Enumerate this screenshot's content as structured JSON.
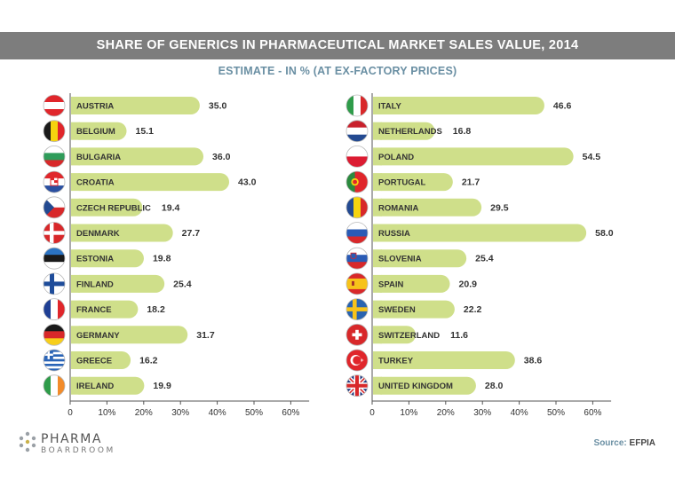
{
  "chart_data": {
    "type": "bar",
    "orientation": "horizontal",
    "title": "SHARE OF GENERICS IN PHARMACEUTICAL MARKET SALES VALUE, 2014",
    "subtitle": "ESTIMATE - IN % (AT EX-FACTORY PRICES)",
    "xlim": [
      0,
      65
    ],
    "xticks": [
      "0",
      "10%",
      "20%",
      "30%",
      "40%",
      "50%",
      "60%"
    ],
    "grid": false,
    "bar_color": "#cfdf8a",
    "panels": [
      {
        "categories": [
          "AUSTRIA",
          "BELGIUM",
          "BULGARIA",
          "CROATIA",
          "CZECH REPUBLIC",
          "DENMARK",
          "ESTONIA",
          "FINLAND",
          "FRANCE",
          "GERMANY",
          "GREECE",
          "IRELAND"
        ],
        "values": [
          35.0,
          15.1,
          36.0,
          43.0,
          19.4,
          27.7,
          19.8,
          25.4,
          18.2,
          31.7,
          16.2,
          19.9
        ],
        "value_labels": [
          "35.0",
          "15.1",
          "36.0",
          "43.0",
          "19.4",
          "27.7",
          "19.8",
          "25.4",
          "18.2",
          "31.7",
          "16.2",
          "19.9"
        ],
        "flags": [
          "austria-flag-icon",
          "belgium-flag-icon",
          "bulgaria-flag-icon",
          "croatia-flag-icon",
          "czech-republic-flag-icon",
          "denmark-flag-icon",
          "estonia-flag-icon",
          "finland-flag-icon",
          "france-flag-icon",
          "germany-flag-icon",
          "greece-flag-icon",
          "ireland-flag-icon"
        ]
      },
      {
        "categories": [
          "ITALY",
          "NETHERLANDS",
          "POLAND",
          "PORTUGAL",
          "ROMANIA",
          "RUSSIA",
          "SLOVENIA",
          "SPAIN",
          "SWEDEN",
          "SWITZERLAND",
          "TURKEY",
          "UNITED KINGDOM"
        ],
        "values": [
          46.6,
          16.8,
          54.5,
          21.7,
          29.5,
          58.0,
          25.4,
          20.9,
          22.2,
          11.6,
          38.6,
          28.0
        ],
        "value_labels": [
          "46.6",
          "16.8",
          "54.5",
          "21.7",
          "29.5",
          "58.0",
          "25.4",
          "20.9",
          "22.2",
          "11.6",
          "38.6",
          "28.0"
        ],
        "flags": [
          "italy-flag-icon",
          "netherlands-flag-icon",
          "poland-flag-icon",
          "portugal-flag-icon",
          "romania-flag-icon",
          "russia-flag-icon",
          "slovenia-flag-icon",
          "spain-flag-icon",
          "sweden-flag-icon",
          "switzerland-flag-icon",
          "turkey-flag-icon",
          "united-kingdom-flag-icon"
        ]
      }
    ]
  },
  "footer": {
    "logo_line1": "PHARMA",
    "logo_line2": "BOARDROOM",
    "source_label": "Source:",
    "source_value": "EFPIA"
  }
}
